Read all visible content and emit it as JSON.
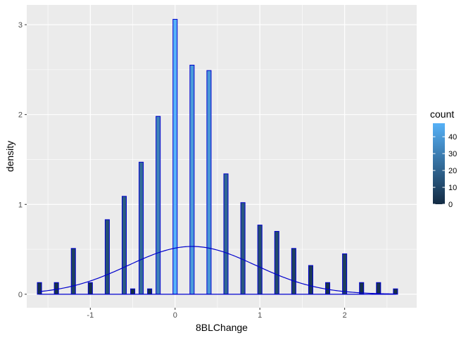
{
  "chart_data": {
    "type": "bar",
    "subtype": "histogram-with-density-curve",
    "xlabel": "8BLChange",
    "ylabel": "density",
    "xlim": [
      -1.75,
      2.85
    ],
    "ylim": [
      -0.15,
      3.22
    ],
    "x_ticks": [
      -1,
      0,
      1,
      2
    ],
    "x_tick_labels": [
      "-1",
      "0",
      "1",
      "2"
    ],
    "y_ticks": [
      0,
      1,
      2,
      3
    ],
    "y_tick_labels": [
      "0",
      "1",
      "2",
      "3"
    ],
    "bin_width": 0.05,
    "x": [
      -1.6,
      -1.4,
      -1.2,
      -1.0,
      -0.8,
      -0.6,
      -0.5,
      -0.4,
      -0.3,
      -0.2,
      0.0,
      0.2,
      0.4,
      0.6,
      0.8,
      1.0,
      1.2,
      1.4,
      1.6,
      1.8,
      2.0,
      2.2,
      2.4,
      2.6
    ],
    "density": [
      0.13,
      0.13,
      0.51,
      0.13,
      0.83,
      1.09,
      0.06,
      1.47,
      0.06,
      1.98,
      3.06,
      2.55,
      2.49,
      1.34,
      1.02,
      0.77,
      0.7,
      0.51,
      0.32,
      0.13,
      0.45,
      0.13,
      0.13,
      0.06
    ],
    "count": [
      2,
      2,
      8,
      2,
      13,
      17,
      1,
      23,
      1,
      31,
      48,
      40,
      39,
      21,
      16,
      12,
      11,
      8,
      5,
      2,
      7,
      2,
      2,
      1
    ],
    "fill_scale": {
      "low": "#132B43",
      "high": "#56B1F7",
      "domain": [
        0,
        48
      ]
    },
    "bar_outline": "#0000cd",
    "density_curve": {
      "type": "normal",
      "mean": 0.2,
      "sd": 0.75,
      "range": [
        -1.6,
        2.6
      ],
      "color": "#0000cd"
    },
    "legend": {
      "title": "count",
      "ticks": [
        0,
        10,
        20,
        30,
        40
      ],
      "tick_labels": [
        "0",
        "10",
        "20",
        "30",
        "40"
      ],
      "placement": "right"
    },
    "grid": true,
    "panel_background": "#ebebeb"
  }
}
